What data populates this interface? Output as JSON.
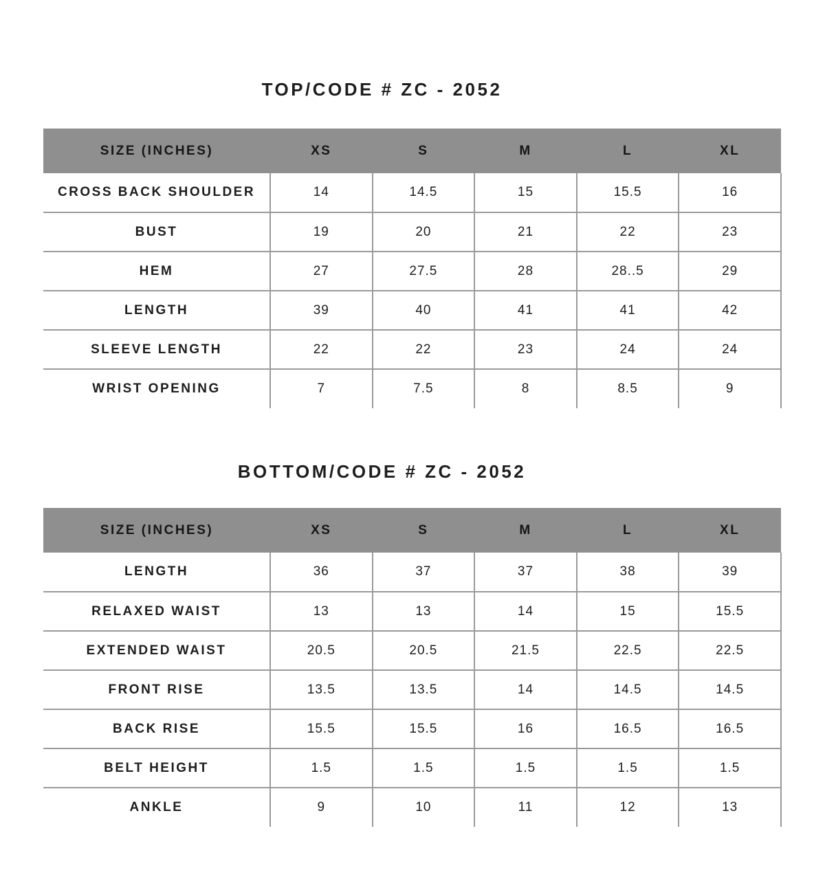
{
  "colors": {
    "header_background": "#8f8f8f",
    "border": "#9a9a9a",
    "text": "#1d1d1d",
    "page_background": "#ffffff"
  },
  "tables": [
    {
      "title": "TOP/CODE # ZC - 2052",
      "header": [
        "SIZE (INCHES)",
        "XS",
        "S",
        "M",
        "L",
        "XL"
      ],
      "rows": [
        {
          "label": "CROSS BACK SHOULDER",
          "values": [
            "14",
            "14.5",
            "15",
            "15.5",
            "16"
          ]
        },
        {
          "label": "BUST",
          "values": [
            "19",
            "20",
            "21",
            "22",
            "23"
          ]
        },
        {
          "label": "HEM",
          "values": [
            "27",
            "27.5",
            "28",
            "28..5",
            "29"
          ]
        },
        {
          "label": "LENGTH",
          "values": [
            "39",
            "40",
            "41",
            "41",
            "42"
          ]
        },
        {
          "label": "SLEEVE LENGTH",
          "values": [
            "22",
            "22",
            "23",
            "24",
            "24"
          ]
        },
        {
          "label": "WRIST OPENING",
          "values": [
            "7",
            "7.5",
            "8",
            "8.5",
            "9"
          ]
        }
      ]
    },
    {
      "title": "BOTTOM/CODE # ZC - 2052",
      "header": [
        "SIZE (INCHES)",
        "XS",
        "S",
        "M",
        "L",
        "XL"
      ],
      "rows": [
        {
          "label": "LENGTH",
          "values": [
            "36",
            "37",
            "37",
            "38",
            "39"
          ]
        },
        {
          "label": "RELAXED WAIST",
          "values": [
            "13",
            "13",
            "14",
            "15",
            "15.5"
          ]
        },
        {
          "label": "EXTENDED WAIST",
          "values": [
            "20.5",
            "20.5",
            "21.5",
            "22.5",
            "22.5"
          ]
        },
        {
          "label": "FRONT RISE",
          "values": [
            "13.5",
            "13.5",
            "14",
            "14.5",
            "14.5"
          ]
        },
        {
          "label": "BACK RISE",
          "values": [
            "15.5",
            "15.5",
            "16",
            "16.5",
            "16.5"
          ]
        },
        {
          "label": "BELT HEIGHT",
          "values": [
            "1.5",
            "1.5",
            "1.5",
            "1.5",
            "1.5"
          ]
        },
        {
          "label": "ANKLE",
          "values": [
            "9",
            "10",
            "11",
            "12",
            "13"
          ]
        }
      ]
    }
  ]
}
